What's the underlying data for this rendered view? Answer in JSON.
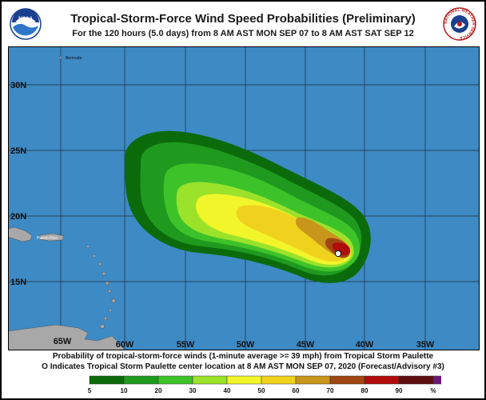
{
  "title": "Tropical-Storm-Force Wind Speed Probabilities (Preliminary)",
  "subtitle": "For the 120 hours (5.0 days) from 8 AM AST MON SEP 07 to 8 AM AST SAT SEP 12",
  "logos": {
    "noaa_text": "NOAA",
    "nws_ring_text": "NATIONAL WEATHER SERVICE"
  },
  "map": {
    "ocean_color": "#3d8ac4",
    "land_color": "#a8a8a8",
    "lat_labels": [
      "30N",
      "25N",
      "20N",
      "15N"
    ],
    "lon_labels": [
      "65W",
      "60W",
      "55W",
      "50W",
      "45W",
      "40W",
      "35W"
    ],
    "places": [
      "Bermuda",
      "Puerto Rico"
    ],
    "storm_center_marker": "white circle"
  },
  "caption": {
    "line1": "Probability of tropical-storm-force winds (1-minute average >= 39 mph) from Tropical Storm Paulette",
    "line2": "O Indicates Tropical Storm Paulette center location at 8 AM AST MON SEP 07, 2020 (Forecast/Advisory #3)"
  },
  "legend": {
    "labels": [
      "5",
      "10",
      "20",
      "30",
      "40",
      "50",
      "60",
      "70",
      "80",
      "90",
      "%"
    ],
    "colors": [
      "#0b6b0b",
      "#1f9a1f",
      "#3ec22a",
      "#9be22a",
      "#f2f52a",
      "#f0d21e",
      "#c8961a",
      "#a04612",
      "#b00c0c",
      "#5e0d10",
      "#6a1a74"
    ]
  }
}
